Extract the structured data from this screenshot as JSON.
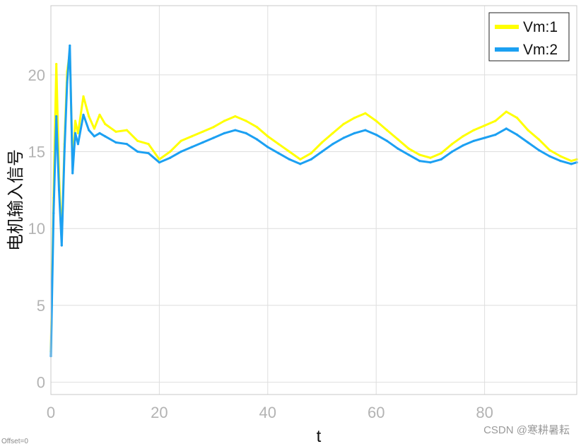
{
  "chart_data": {
    "type": "line",
    "title": "",
    "xlabel": "t",
    "ylabel": "电机输入信号",
    "xlim": [
      0,
      97
    ],
    "ylim": [
      -0.8,
      24.5
    ],
    "xticks": [
      0,
      20,
      40,
      60,
      80
    ],
    "yticks": [
      0,
      5,
      10,
      15,
      20
    ],
    "grid": true,
    "legend_position": "top-right",
    "series": [
      {
        "name": "Vm:1",
        "color": "#ffff00",
        "x": [
          0,
          0.5,
          1,
          1.5,
          2,
          2.5,
          3,
          3.5,
          4,
          4.5,
          5,
          6,
          7,
          8,
          9,
          10,
          12,
          14,
          16,
          18,
          20,
          22,
          24,
          26,
          28,
          30,
          32,
          34,
          36,
          38,
          40,
          42,
          44,
          46,
          48,
          50,
          52,
          54,
          56,
          58,
          60,
          62,
          64,
          66,
          68,
          70,
          72,
          74,
          76,
          78,
          80,
          82,
          84,
          86,
          88,
          90,
          92,
          94,
          96,
          97
        ],
        "values": [
          2,
          12,
          20.7,
          13.5,
          9.2,
          15.5,
          20.2,
          21.5,
          14,
          17,
          16.2,
          18.6,
          17.3,
          16.5,
          17.4,
          16.8,
          16.3,
          16.4,
          15.7,
          15.5,
          14.5,
          15,
          15.7,
          16,
          16.3,
          16.6,
          17,
          17.3,
          17,
          16.6,
          16,
          15.5,
          15,
          14.5,
          14.9,
          15.6,
          16.2,
          16.8,
          17.2,
          17.5,
          17,
          16.4,
          15.8,
          15.2,
          14.8,
          14.6,
          14.9,
          15.5,
          16,
          16.4,
          16.7,
          17,
          17.6,
          17.2,
          16.4,
          15.8,
          15.1,
          14.7,
          14.4,
          14.5
        ]
      },
      {
        "name": "Vm:2",
        "color": "#1ca0f2",
        "x": [
          0,
          0.5,
          1,
          1.5,
          2,
          2.5,
          3,
          3.5,
          4,
          4.5,
          5,
          6,
          7,
          8,
          9,
          10,
          12,
          14,
          16,
          18,
          20,
          22,
          24,
          26,
          28,
          30,
          32,
          34,
          36,
          38,
          40,
          42,
          44,
          46,
          48,
          50,
          52,
          54,
          56,
          58,
          60,
          62,
          64,
          66,
          68,
          70,
          72,
          74,
          76,
          78,
          80,
          82,
          84,
          86,
          88,
          90,
          92,
          94,
          96,
          97
        ],
        "values": [
          1.7,
          11,
          17.3,
          12.5,
          8.9,
          15,
          19.5,
          21.9,
          13.6,
          16.2,
          15.5,
          17.4,
          16.4,
          16,
          16.2,
          16,
          15.6,
          15.5,
          15,
          14.9,
          14.3,
          14.6,
          15,
          15.3,
          15.6,
          15.9,
          16.2,
          16.4,
          16.2,
          15.8,
          15.3,
          14.9,
          14.5,
          14.2,
          14.5,
          15,
          15.5,
          15.9,
          16.2,
          16.4,
          16.1,
          15.7,
          15.2,
          14.8,
          14.4,
          14.3,
          14.5,
          15,
          15.4,
          15.7,
          15.9,
          16.1,
          16.5,
          16.1,
          15.6,
          15.1,
          14.7,
          14.4,
          14.2,
          14.3
        ]
      }
    ]
  },
  "legend": {
    "items": [
      {
        "label": "Vm:1",
        "color": "#ffff00"
      },
      {
        "label": "Vm:2",
        "color": "#1ca0f2"
      }
    ]
  },
  "offset_note": "Offset=0",
  "watermark": "CSDN @寒耕暑耘"
}
